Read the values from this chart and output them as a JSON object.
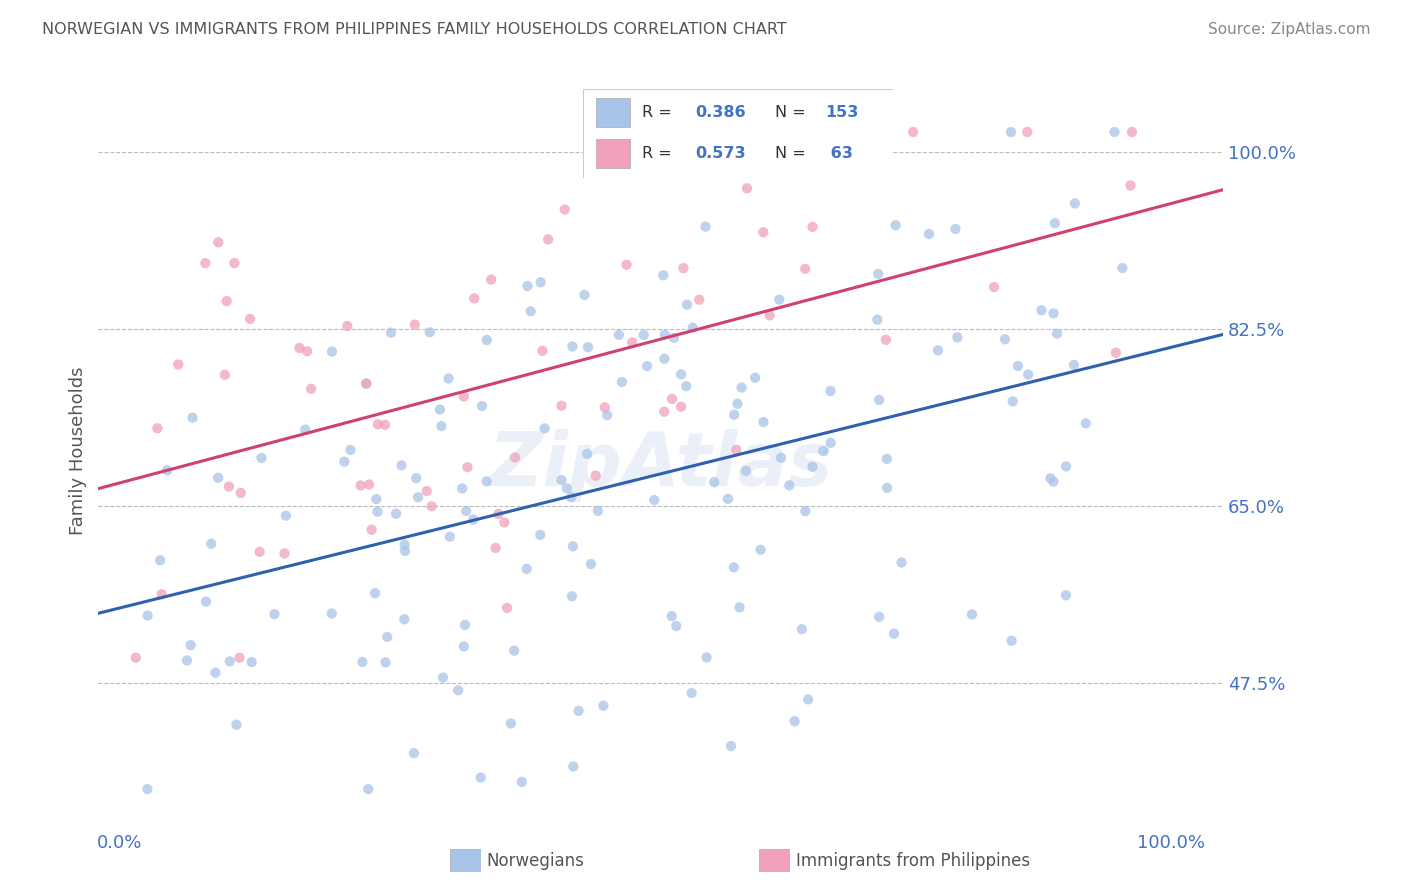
{
  "title": "NORWEGIAN VS IMMIGRANTS FROM PHILIPPINES FAMILY HOUSEHOLDS CORRELATION CHART",
  "source": "Source: ZipAtlas.com",
  "ylabel": "Family Households",
  "legend_labels": [
    "Norwegians",
    "Immigrants from Philippines"
  ],
  "blue_R": 0.386,
  "blue_N": 153,
  "pink_R": 0.573,
  "pink_N": 63,
  "blue_color": "#a8c4e8",
  "pink_color": "#f0a0b8",
  "blue_line_color": "#3060b0",
  "pink_line_color": "#d04070",
  "axis_label_color": "#4472c4",
  "title_color": "#555555",
  "ytick_labels": [
    "47.5%",
    "65.0%",
    "82.5%",
    "100.0%"
  ],
  "ytick_values": [
    0.475,
    0.65,
    0.825,
    1.0
  ],
  "xtick_labels": [
    "0.0%",
    "100.0%"
  ],
  "xtick_values": [
    0.0,
    1.0
  ],
  "xmin": -0.02,
  "xmax": 1.05,
  "ymin": 0.33,
  "ymax": 1.08,
  "watermark": "ZipAtlas"
}
